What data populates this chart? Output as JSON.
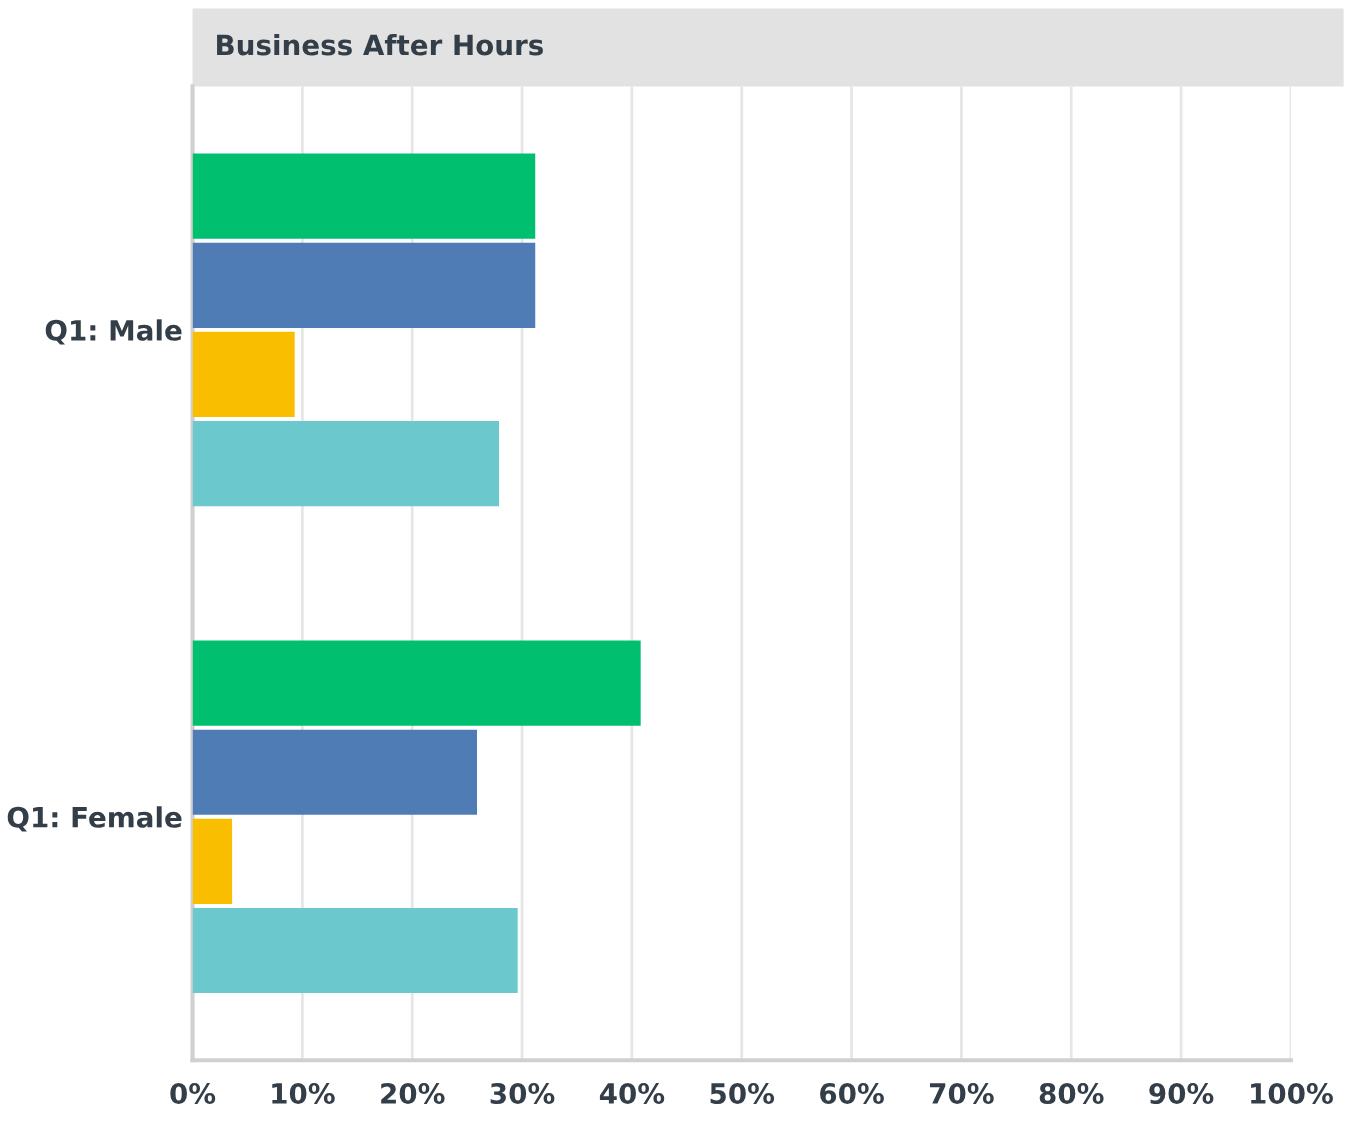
{
  "chart_data": {
    "type": "bar",
    "orientation": "horizontal",
    "title": "Business After Hours",
    "categories": [
      "Q1: Male",
      "Q1: Female"
    ],
    "series": [
      {
        "color": "#00bf6f",
        "values": [
          31.2,
          40.8
        ]
      },
      {
        "color": "#507cb6",
        "values": [
          31.2,
          25.9
        ]
      },
      {
        "color": "#f9be00",
        "values": [
          9.3,
          3.6
        ]
      },
      {
        "color": "#6bc8cd",
        "values": [
          27.9,
          29.6
        ]
      }
    ],
    "xlim": [
      0,
      100
    ],
    "xticks": [
      {
        "value": 0,
        "label": "0%"
      },
      {
        "value": 10,
        "label": "10%"
      },
      {
        "value": 20,
        "label": "20%"
      },
      {
        "value": 30,
        "label": "30%"
      },
      {
        "value": 40,
        "label": "40%"
      },
      {
        "value": 50,
        "label": "50%"
      },
      {
        "value": 60,
        "label": "60%"
      },
      {
        "value": 70,
        "label": "70%"
      },
      {
        "value": 80,
        "label": "80%"
      },
      {
        "value": 90,
        "label": "90%"
      },
      {
        "value": 100,
        "label": "100%"
      }
    ],
    "grid": "x"
  }
}
